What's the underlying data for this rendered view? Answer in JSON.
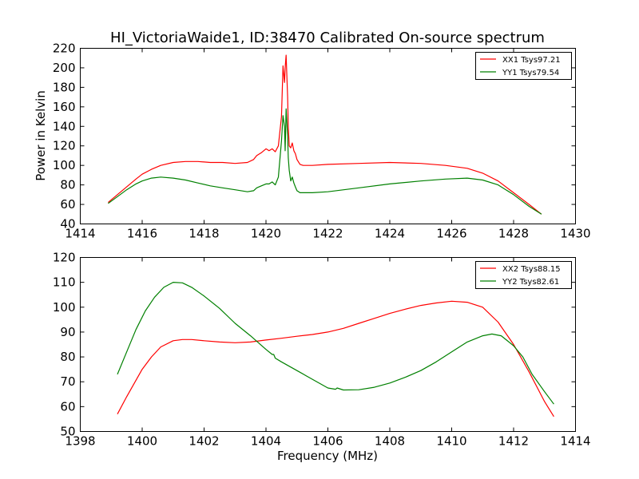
{
  "figure": {
    "title": "HI_VictoriaWaide1, ID:38470 Calibrated On-source spectrum"
  },
  "colors": {
    "xx": "#ff0000",
    "yy": "#008000",
    "frame": "#000000",
    "background": "#ffffff"
  },
  "chart_data": [
    {
      "type": "line",
      "title": "HI_VictoriaWaide1, ID:38470 Calibrated On-source spectrum",
      "xlabel": "",
      "ylabel": "Power in Kelvin",
      "xlim": [
        1414,
        1430
      ],
      "ylim": [
        40,
        220
      ],
      "xticks": [
        1414,
        1416,
        1418,
        1420,
        1422,
        1424,
        1426,
        1428,
        1430
      ],
      "yticks": [
        40,
        60,
        80,
        100,
        120,
        140,
        160,
        180,
        200,
        220
      ],
      "grid": false,
      "legend_position": "top-right",
      "series": [
        {
          "name": "XX1 Tsys97.21",
          "color": "#ff0000",
          "x": [
            1414.9,
            1415.2,
            1415.5,
            1415.8,
            1416.0,
            1416.3,
            1416.6,
            1417.0,
            1417.4,
            1417.8,
            1418.2,
            1418.6,
            1419.0,
            1419.4,
            1419.6,
            1419.7,
            1419.85,
            1420.0,
            1420.1,
            1420.2,
            1420.3,
            1420.4,
            1420.5,
            1420.55,
            1420.6,
            1420.62,
            1420.65,
            1420.7,
            1420.72,
            1420.75,
            1420.8,
            1420.85,
            1420.9,
            1420.95,
            1421.0,
            1421.1,
            1421.2,
            1421.5,
            1422.0,
            1423.0,
            1424.0,
            1425.0,
            1425.8,
            1426.5,
            1427.0,
            1427.5,
            1428.0,
            1428.5,
            1428.9
          ],
          "y": [
            62,
            70,
            78,
            86,
            91,
            96,
            100,
            103,
            104,
            104,
            103,
            103,
            102,
            103,
            106,
            110,
            113,
            117,
            115,
            117,
            114,
            120,
            150,
            202,
            185,
            200,
            213,
            170,
            140,
            120,
            118,
            123,
            115,
            112,
            106,
            101,
            100,
            100,
            101,
            102,
            103,
            102,
            100,
            97,
            92,
            84,
            72,
            60,
            50
          ]
        },
        {
          "name": "YY1 Tsys79.54",
          "color": "#008000",
          "x": [
            1414.9,
            1415.2,
            1415.5,
            1415.8,
            1416.0,
            1416.3,
            1416.6,
            1417.0,
            1417.4,
            1417.8,
            1418.2,
            1418.6,
            1419.0,
            1419.4,
            1419.6,
            1419.7,
            1419.85,
            1420.0,
            1420.1,
            1420.2,
            1420.3,
            1420.4,
            1420.5,
            1420.55,
            1420.6,
            1420.62,
            1420.65,
            1420.7,
            1420.72,
            1420.75,
            1420.8,
            1420.85,
            1420.9,
            1420.95,
            1421.0,
            1421.1,
            1421.2,
            1421.5,
            1422.0,
            1423.0,
            1424.0,
            1425.0,
            1425.8,
            1426.5,
            1427.0,
            1427.5,
            1428.0,
            1428.5,
            1428.9
          ],
          "y": [
            61,
            68,
            75,
            81,
            84,
            87,
            88,
            87,
            85,
            82,
            79,
            77,
            75,
            73,
            74,
            77,
            79,
            81,
            81,
            83,
            80,
            88,
            125,
            151,
            140,
            115,
            158,
            130,
            108,
            95,
            84,
            88,
            82,
            78,
            74,
            72,
            72,
            72,
            73,
            77,
            81,
            84,
            86,
            87,
            85,
            80,
            70,
            58,
            50
          ]
        }
      ]
    },
    {
      "type": "line",
      "title": "",
      "xlabel": "Frequency (MHz)",
      "ylabel": "",
      "xlim": [
        1398,
        1414
      ],
      "ylim": [
        50,
        120
      ],
      "xticks": [
        1398,
        1400,
        1402,
        1404,
        1406,
        1408,
        1410,
        1412,
        1414
      ],
      "yticks": [
        50,
        60,
        70,
        80,
        90,
        100,
        110,
        120
      ],
      "grid": false,
      "legend_position": "top-right",
      "series": [
        {
          "name": "XX2 Tsys88.15",
          "color": "#ff0000",
          "x": [
            1399.2,
            1399.5,
            1400.0,
            1400.3,
            1400.6,
            1401.0,
            1401.3,
            1401.6,
            1402.0,
            1402.5,
            1403.0,
            1403.5,
            1404.0,
            1404.5,
            1405.0,
            1405.5,
            1406.0,
            1406.5,
            1407.0,
            1407.5,
            1408.0,
            1408.5,
            1409.0,
            1409.5,
            1410.0,
            1410.5,
            1411.0,
            1411.5,
            1412.0,
            1412.5,
            1413.0,
            1413.3
          ],
          "y": [
            57,
            64,
            75,
            80,
            84,
            86.5,
            87,
            87,
            86.5,
            86,
            85.7,
            86,
            86.8,
            87.5,
            88.3,
            89,
            90,
            91.5,
            93.5,
            95.5,
            97.5,
            99.2,
            100.7,
            101.7,
            102.4,
            102,
            100,
            94,
            85,
            74,
            62,
            56
          ]
        },
        {
          "name": "YY2 Tsys82.61",
          "color": "#008000",
          "x": [
            1399.2,
            1399.5,
            1399.8,
            1400.1,
            1400.4,
            1400.7,
            1401.0,
            1401.3,
            1401.6,
            1402.0,
            1402.5,
            1403.0,
            1403.5,
            1404.0,
            1404.2,
            1404.25,
            1404.3,
            1404.5,
            1405.0,
            1405.5,
            1406.0,
            1406.25,
            1406.3,
            1406.5,
            1407.0,
            1407.5,
            1408.0,
            1408.5,
            1409.0,
            1409.5,
            1410.0,
            1410.5,
            1411.0,
            1411.3,
            1411.6,
            1412.0,
            1412.3,
            1412.6,
            1413.0,
            1413.3
          ],
          "y": [
            73,
            82,
            91,
            98.5,
            104,
            108,
            110,
            109.8,
            108,
            104.5,
            99.5,
            93.5,
            88.5,
            83,
            81,
            81,
            79.5,
            78,
            74.5,
            71,
            67.5,
            67,
            67.5,
            66.7,
            66.8,
            67.8,
            69.5,
            71.8,
            74.5,
            78,
            82,
            86,
            88.5,
            89.2,
            88.5,
            84.5,
            80,
            73,
            66,
            61
          ]
        }
      ]
    }
  ]
}
